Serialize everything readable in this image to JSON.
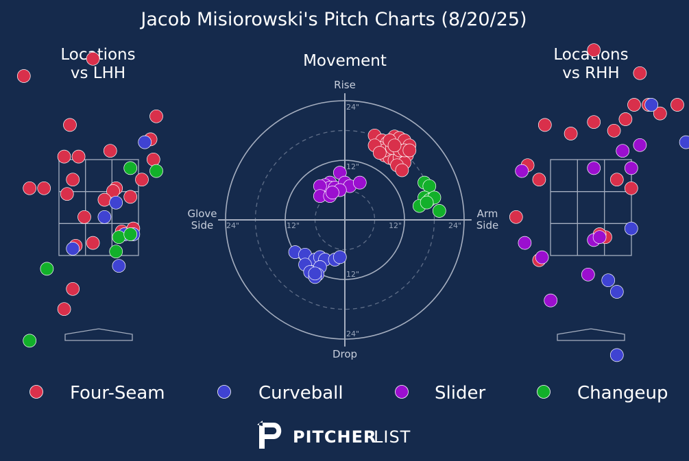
{
  "chart_data": {
    "type": "scatter",
    "title": "Jacob Misiorowski's Pitch Charts (8/20/25)",
    "colors": {
      "background": "#152a4c",
      "Four-Seam": "#d9304b",
      "Curveball": "#3f43d2",
      "Slider": "#9b0fcf",
      "Changeup": "#12b02a",
      "lines": "#a6afc0"
    },
    "legend": {
      "placement": "bottom",
      "entries": [
        "Four-Seam",
        "Curveball",
        "Slider",
        "Changeup"
      ]
    },
    "brand": {
      "bold": "PITCHER",
      "light": "LIST"
    },
    "panels": {
      "lhh": {
        "title_line1": "Locations",
        "title_line2": "vs LHH",
        "series": [
          {
            "name": "Four-Seam",
            "points": [
              [
                -0.1,
                4.8
              ],
              [
                -1.3,
                4.5
              ],
              [
                -0.5,
                3.65
              ],
              [
                -0.6,
                3.1
              ],
              [
                -0.35,
                3.1
              ],
              [
                0.2,
                3.2
              ],
              [
                1.0,
                3.8
              ],
              [
                0.9,
                3.4
              ],
              [
                -0.45,
                2.7
              ],
              [
                -0.55,
                2.45
              ],
              [
                0.3,
                2.55
              ],
              [
                0.25,
                2.5
              ],
              [
                0.55,
                2.4
              ],
              [
                -0.95,
                2.55
              ],
              [
                -1.2,
                2.55
              ],
              [
                -0.25,
                2.05
              ],
              [
                0.1,
                2.35
              ],
              [
                0.75,
                2.7
              ],
              [
                0.4,
                1.8
              ],
              [
                0.6,
                1.85
              ],
              [
                -0.4,
                1.55
              ],
              [
                -0.1,
                1.6
              ],
              [
                -0.45,
                0.8
              ],
              [
                -0.6,
                0.45
              ],
              [
                0.95,
                3.05
              ]
            ]
          },
          {
            "name": "Curveball",
            "points": [
              [
                0.8,
                3.35
              ],
              [
                0.3,
                2.3
              ],
              [
                0.1,
                2.05
              ],
              [
                0.45,
                1.75
              ],
              [
                -0.45,
                1.5
              ],
              [
                0.35,
                1.2
              ],
              [
                0.6,
                1.75
              ]
            ]
          },
          {
            "name": "Changeup",
            "points": [
              [
                0.55,
                2.9
              ],
              [
                1.0,
                2.85
              ],
              [
                0.35,
                1.7
              ],
              [
                0.55,
                1.75
              ],
              [
                0.3,
                1.45
              ],
              [
                -0.9,
                1.15
              ],
              [
                -1.2,
                -0.1
              ]
            ]
          }
        ]
      },
      "movement": {
        "title": "Movement",
        "top_label": "Rise",
        "bottom_label": "Drop",
        "left_label_line1": "Glove",
        "left_label_line2": "Side",
        "right_label_line1": "Arm",
        "right_label_line2": "Side",
        "rings_inches": [
          6,
          12,
          18,
          24
        ],
        "tick_labels": {
          "up12": "12\"",
          "up24": "24\"",
          "down12": "12\"",
          "down24": "24\"",
          "left12": "12\"",
          "left24": "24\"",
          "right12": "12\"",
          "right24": "24\""
        },
        "series": [
          {
            "name": "Four-Seam",
            "points": [
              [
                6,
                17
              ],
              [
                7.5,
                16
              ],
              [
                8.5,
                15.5
              ],
              [
                10,
                16.8
              ],
              [
                11,
                16.5
              ],
              [
                12,
                16
              ],
              [
                13,
                15
              ],
              [
                8,
                13
              ],
              [
                9,
                12.5
              ],
              [
                10,
                12
              ],
              [
                11,
                12.5
              ],
              [
                12.5,
                13
              ],
              [
                12,
                11.5
              ],
              [
                10.5,
                11
              ],
              [
                7,
                14.5
              ],
              [
                8,
                14
              ],
              [
                9.5,
                14.5
              ],
              [
                11,
                14
              ],
              [
                12,
                14
              ],
              [
                9,
                16
              ],
              [
                6,
                15
              ],
              [
                7,
                13.5
              ],
              [
                10,
                15
              ],
              [
                13,
                14
              ],
              [
                11.5,
                10
              ]
            ]
          },
          {
            "name": "Curveball",
            "points": [
              [
                -10,
                -6.5
              ],
              [
                -8,
                -7
              ],
              [
                -6,
                -8
              ],
              [
                -5,
                -7.5
              ],
              [
                -4,
                -8
              ],
              [
                -2,
                -8
              ],
              [
                -1,
                -7.5
              ],
              [
                -8,
                -9
              ],
              [
                -5,
                -9.5
              ],
              [
                -7,
                -10.5
              ],
              [
                -5.5,
                -11
              ],
              [
                -6,
                -11.5
              ],
              [
                -6,
                -10.8
              ]
            ]
          },
          {
            "name": "Slider",
            "points": [
              [
                -1,
                9.5
              ],
              [
                -3,
                7.5
              ],
              [
                -4,
                7
              ],
              [
                -3,
                6.5
              ],
              [
                -2,
                6.5
              ],
              [
                0,
                7.5
              ],
              [
                1,
                6.8
              ],
              [
                3,
                7.5
              ],
              [
                -5,
                6.8
              ],
              [
                -5,
                4.8
              ],
              [
                -3,
                4.8
              ],
              [
                -1,
                6
              ],
              [
                -2.5,
                5.5
              ]
            ]
          },
          {
            "name": "Changeup",
            "points": [
              [
                16,
                7.5
              ],
              [
                17,
                6.8
              ],
              [
                16,
                4.5
              ],
              [
                17,
                4
              ],
              [
                18,
                4.5
              ],
              [
                15,
                2.8
              ],
              [
                16.5,
                3.5
              ],
              [
                19,
                1.8
              ]
            ]
          }
        ]
      },
      "rhh": {
        "title_line1": "Locations",
        "title_line2": "vs RHH",
        "series": [
          {
            "name": "Four-Seam",
            "points": [
              [
                0.05,
                4.95
              ],
              [
                0.85,
                4.55
              ],
              [
                0.75,
                4.0
              ],
              [
                1.0,
                4.0
              ],
              [
                1.5,
                4.0
              ],
              [
                1.2,
                3.85
              ],
              [
                0.6,
                3.75
              ],
              [
                0.05,
                3.7
              ],
              [
                -0.35,
                3.5
              ],
              [
                -0.8,
                3.65
              ],
              [
                0.4,
                3.55
              ],
              [
                -1.1,
                2.95
              ],
              [
                -0.9,
                2.7
              ],
              [
                0.45,
                2.7
              ],
              [
                0.7,
                2.55
              ],
              [
                -1.3,
                2.05
              ],
              [
                0.25,
                1.7
              ],
              [
                -0.9,
                1.3
              ],
              [
                0.15,
                1.75
              ]
            ]
          },
          {
            "name": "Curveball",
            "points": [
              [
                1.05,
                4.0
              ],
              [
                1.65,
                3.35
              ],
              [
                0.7,
                1.85
              ],
              [
                0.3,
                0.95
              ],
              [
                0.45,
                0.75
              ],
              [
                0.45,
                -0.35
              ]
            ]
          },
          {
            "name": "Slider",
            "points": [
              [
                -1.2,
                2.85
              ],
              [
                0.05,
                2.9
              ],
              [
                0.55,
                3.2
              ],
              [
                0.7,
                2.9
              ],
              [
                0.85,
                3.3
              ],
              [
                -1.15,
                1.6
              ],
              [
                -0.85,
                1.35
              ],
              [
                0.05,
                1.65
              ],
              [
                0.15,
                1.7
              ],
              [
                -0.05,
                1.05
              ],
              [
                -0.7,
                0.6
              ]
            ]
          }
        ]
      }
    }
  }
}
